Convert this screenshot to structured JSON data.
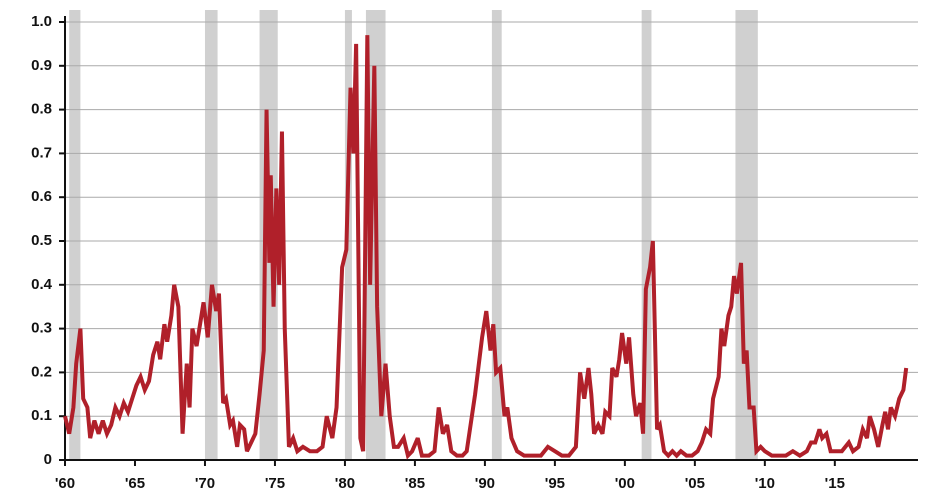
{
  "chart_data": {
    "type": "line",
    "x": [
      1960.0,
      1960.3,
      1960.6,
      1960.8,
      1961.1,
      1961.3,
      1961.6,
      1961.8,
      1962.1,
      1962.4,
      1962.7,
      1963.0,
      1963.3,
      1963.6,
      1963.9,
      1964.2,
      1964.5,
      1964.8,
      1965.1,
      1965.4,
      1965.7,
      1966.0,
      1966.3,
      1966.6,
      1966.8,
      1967.1,
      1967.3,
      1967.6,
      1967.8,
      1968.1,
      1968.4,
      1968.7,
      1968.9,
      1969.1,
      1969.4,
      1969.6,
      1969.9,
      1970.2,
      1970.5,
      1970.8,
      1971.0,
      1971.3,
      1971.5,
      1971.8,
      1972.0,
      1972.3,
      1972.5,
      1972.8,
      1973.0,
      1973.3,
      1973.6,
      1973.9,
      1974.2,
      1974.4,
      1974.6,
      1974.7,
      1974.9,
      1975.1,
      1975.3,
      1975.5,
      1975.7,
      1976.0,
      1976.3,
      1976.6,
      1977.0,
      1977.5,
      1978.0,
      1978.4,
      1978.7,
      1979.1,
      1979.4,
      1979.8,
      1980.1,
      1980.4,
      1980.6,
      1980.8,
      1981.1,
      1981.3,
      1981.6,
      1981.8,
      1982.1,
      1982.3,
      1982.6,
      1982.9,
      1983.2,
      1983.5,
      1983.8,
      1984.2,
      1984.5,
      1984.8,
      1985.2,
      1985.5,
      1986.0,
      1986.4,
      1986.7,
      1987.0,
      1987.3,
      1987.6,
      1988.0,
      1988.4,
      1988.7,
      1989.3,
      1989.8,
      1990.1,
      1990.4,
      1990.6,
      1990.8,
      1991.1,
      1991.4,
      1991.6,
      1991.9,
      1992.3,
      1992.8,
      1993.5,
      1994.0,
      1994.5,
      1995.0,
      1995.5,
      1996.0,
      1996.5,
      1996.8,
      1997.1,
      1997.4,
      1997.6,
      1997.8,
      1998.1,
      1998.4,
      1998.6,
      1998.9,
      1999.1,
      1999.4,
      1999.6,
      1999.8,
      2000.1,
      2000.3,
      2000.6,
      2000.8,
      2001.1,
      2001.3,
      2001.5,
      2001.8,
      2002.0,
      2002.3,
      2002.5,
      2002.8,
      2003.1,
      2003.4,
      2003.7,
      2004.0,
      2004.4,
      2004.8,
      2005.2,
      2005.5,
      2005.8,
      2006.1,
      2006.3,
      2006.7,
      2006.9,
      2007.1,
      2007.4,
      2007.6,
      2007.8,
      2008.0,
      2008.3,
      2008.5,
      2008.7,
      2008.9,
      2009.2,
      2009.4,
      2009.7,
      2010.0,
      2010.5,
      2011.0,
      2011.5,
      2012.0,
      2012.5,
      2013.0,
      2013.3,
      2013.6,
      2013.9,
      2014.1,
      2014.4,
      2014.7,
      2015.0,
      2015.5,
      2016.0,
      2016.3,
      2016.7,
      2017.0,
      2017.3,
      2017.5,
      2017.8,
      2018.1,
      2018.4,
      2018.6,
      2018.8,
      2019.0,
      2019.3,
      2019.6,
      2019.9,
      2020.1
    ],
    "series": [
      {
        "color": "#b0202a",
        "values": [
          0.1,
          0.06,
          0.12,
          0.22,
          0.3,
          0.14,
          0.12,
          0.05,
          0.09,
          0.06,
          0.09,
          0.06,
          0.08,
          0.12,
          0.1,
          0.13,
          0.11,
          0.14,
          0.17,
          0.19,
          0.16,
          0.18,
          0.24,
          0.27,
          0.23,
          0.31,
          0.27,
          0.33,
          0.4,
          0.35,
          0.06,
          0.22,
          0.12,
          0.3,
          0.26,
          0.3,
          0.36,
          0.28,
          0.4,
          0.34,
          0.38,
          0.13,
          0.14,
          0.08,
          0.09,
          0.03,
          0.08,
          0.07,
          0.02,
          0.04,
          0.06,
          0.15,
          0.25,
          0.8,
          0.45,
          0.65,
          0.35,
          0.62,
          0.4,
          0.75,
          0.3,
          0.03,
          0.05,
          0.02,
          0.03,
          0.02,
          0.02,
          0.03,
          0.1,
          0.05,
          0.12,
          0.44,
          0.48,
          0.85,
          0.7,
          0.95,
          0.05,
          0.02,
          0.97,
          0.4,
          0.9,
          0.35,
          0.1,
          0.22,
          0.1,
          0.03,
          0.03,
          0.05,
          0.01,
          0.02,
          0.05,
          0.01,
          0.01,
          0.02,
          0.12,
          0.06,
          0.08,
          0.02,
          0.01,
          0.01,
          0.02,
          0.15,
          0.28,
          0.34,
          0.25,
          0.31,
          0.2,
          0.21,
          0.1,
          0.12,
          0.05,
          0.02,
          0.01,
          0.01,
          0.01,
          0.03,
          0.02,
          0.01,
          0.01,
          0.03,
          0.2,
          0.14,
          0.21,
          0.15,
          0.06,
          0.08,
          0.06,
          0.11,
          0.1,
          0.21,
          0.19,
          0.23,
          0.29,
          0.22,
          0.28,
          0.15,
          0.1,
          0.13,
          0.06,
          0.39,
          0.44,
          0.5,
          0.07,
          0.08,
          0.02,
          0.01,
          0.02,
          0.01,
          0.02,
          0.01,
          0.01,
          0.02,
          0.04,
          0.07,
          0.06,
          0.14,
          0.19,
          0.3,
          0.26,
          0.33,
          0.35,
          0.42,
          0.38,
          0.45,
          0.22,
          0.25,
          0.12,
          0.12,
          0.02,
          0.03,
          0.02,
          0.01,
          0.01,
          0.01,
          0.02,
          0.01,
          0.02,
          0.04,
          0.04,
          0.07,
          0.05,
          0.06,
          0.02,
          0.02,
          0.02,
          0.04,
          0.02,
          0.03,
          0.07,
          0.05,
          0.1,
          0.07,
          0.03,
          0.08,
          0.11,
          0.07,
          0.12,
          0.1,
          0.14,
          0.16,
          0.21
        ]
      }
    ],
    "recessions": [
      [
        1960.3,
        1961.1
      ],
      [
        1970.0,
        1970.9
      ],
      [
        1973.9,
        1975.2
      ],
      [
        1980.0,
        1980.5
      ],
      [
        1981.5,
        1982.9
      ],
      [
        1990.5,
        1991.2
      ],
      [
        2001.2,
        2001.9
      ],
      [
        2007.9,
        2009.5
      ]
    ],
    "recession_color": "#d0d0d0",
    "xlim": [
      1960,
      2020.3
    ],
    "xticks": [
      {
        "value": 1960,
        "label": "'60"
      },
      {
        "value": 1965,
        "label": "'65"
      },
      {
        "value": 1970,
        "label": "'70"
      },
      {
        "value": 1975,
        "label": "'75"
      },
      {
        "value": 1980,
        "label": "'80"
      },
      {
        "value": 1985,
        "label": "'85"
      },
      {
        "value": 1990,
        "label": "'90"
      },
      {
        "value": 1995,
        "label": "'95"
      },
      {
        "value": 2000,
        "label": "'00"
      },
      {
        "value": 2005,
        "label": "'05"
      },
      {
        "value": 2010,
        "label": "'10"
      },
      {
        "value": 2015,
        "label": "'15"
      }
    ],
    "ylim": [
      0,
      1
    ],
    "yticks": [
      0,
      0.1,
      0.2,
      0.3,
      0.4,
      0.5,
      0.6,
      0.7,
      0.8,
      0.9,
      {
        "value": 1,
        "label": "1.0"
      }
    ],
    "grid": true
  }
}
